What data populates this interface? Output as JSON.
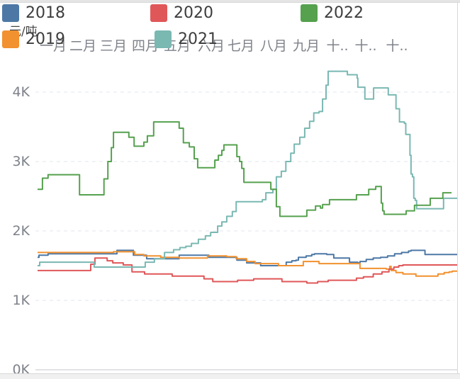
{
  "unit_label": "元/吨",
  "chart_data": {
    "type": "line",
    "title": "",
    "unit_label": "元/吨",
    "legend_position": "top",
    "grid": "dashed horizontal",
    "x_axis": {
      "position": "top",
      "labels": [
        "一月",
        "二月",
        "三月",
        "四月",
        "五月",
        "六月",
        "七月",
        "八月",
        "九月",
        "十..",
        "十..",
        "十.."
      ]
    },
    "y_axis": {
      "unit": "元/吨",
      "min": 0,
      "max": 4500,
      "ticks": [
        {
          "label": "0K",
          "value": 0
        },
        {
          "label": "1K",
          "value": 1000
        },
        {
          "label": "2K",
          "value": 2000
        },
        {
          "label": "3K",
          "value": 3000
        },
        {
          "label": "4K",
          "value": 4000
        }
      ]
    },
    "legend": [
      {
        "label": "2018",
        "color": "#4d78a6"
      },
      {
        "label": "2020",
        "color": "#e05759"
      },
      {
        "label": "2022",
        "color": "#55a14e"
      },
      {
        "label": "2019",
        "color": "#f2912f"
      },
      {
        "label": "2021",
        "color": "#7ab8b2"
      }
    ],
    "series": [
      {
        "name": "2018",
        "color": "#4d78a6",
        "points": [
          [
            0,
            1620
          ],
          [
            0.04,
            1650
          ],
          [
            0.26,
            1650
          ],
          [
            0.3,
            1670
          ],
          [
            2.21,
            1670
          ],
          [
            2.27,
            1720
          ],
          [
            2.68,
            1720
          ],
          [
            2.74,
            1650
          ],
          [
            3.08,
            1650
          ],
          [
            3.12,
            1600
          ],
          [
            3.99,
            1600
          ],
          [
            4.05,
            1650
          ],
          [
            4.84,
            1650
          ],
          [
            4.9,
            1620
          ],
          [
            5.62,
            1620
          ],
          [
            5.7,
            1580
          ],
          [
            5.94,
            1580
          ],
          [
            5.98,
            1540
          ],
          [
            6.32,
            1540
          ],
          [
            6.38,
            1500
          ],
          [
            7.03,
            1500
          ],
          [
            7.11,
            1550
          ],
          [
            7.27,
            1570
          ],
          [
            7.39,
            1580
          ],
          [
            7.46,
            1620
          ],
          [
            7.68,
            1640
          ],
          [
            7.84,
            1660
          ],
          [
            7.92,
            1670
          ],
          [
            8.21,
            1670
          ],
          [
            8.27,
            1660
          ],
          [
            8.43,
            1660
          ],
          [
            8.47,
            1610
          ],
          [
            8.86,
            1610
          ],
          [
            8.92,
            1550
          ],
          [
            9.16,
            1540
          ],
          [
            9.22,
            1560
          ],
          [
            9.4,
            1590
          ],
          [
            9.6,
            1610
          ],
          [
            9.81,
            1620
          ],
          [
            10.01,
            1640
          ],
          [
            10.21,
            1670
          ],
          [
            10.41,
            1690
          ],
          [
            10.61,
            1710
          ],
          [
            10.68,
            1720
          ],
          [
            11.02,
            1720
          ],
          [
            11.08,
            1660
          ],
          [
            12,
            1660
          ]
        ]
      },
      {
        "name": "2019",
        "color": "#f2912f",
        "points": [
          [
            0,
            1690
          ],
          [
            2.17,
            1700
          ],
          [
            2.74,
            1700
          ],
          [
            2.78,
            1660
          ],
          [
            2.98,
            1660
          ],
          [
            3.04,
            1640
          ],
          [
            3.48,
            1640
          ],
          [
            3.52,
            1620
          ],
          [
            3.99,
            1620
          ],
          [
            4.05,
            1610
          ],
          [
            4.8,
            1610
          ],
          [
            4.86,
            1640
          ],
          [
            5.37,
            1640
          ],
          [
            5.41,
            1630
          ],
          [
            5.62,
            1630
          ],
          [
            5.68,
            1600
          ],
          [
            5.92,
            1600
          ],
          [
            5.98,
            1560
          ],
          [
            6.18,
            1560
          ],
          [
            6.22,
            1530
          ],
          [
            6.83,
            1530
          ],
          [
            6.89,
            1500
          ],
          [
            7.54,
            1500
          ],
          [
            7.6,
            1560
          ],
          [
            7.99,
            1560
          ],
          [
            8.05,
            1530
          ],
          [
            9.16,
            1530
          ],
          [
            9.22,
            1460
          ],
          [
            9.91,
            1460
          ],
          [
            9.97,
            1450
          ],
          [
            10.07,
            1490
          ],
          [
            10.11,
            1430
          ],
          [
            10.21,
            1430
          ],
          [
            10.25,
            1400
          ],
          [
            10.41,
            1400
          ],
          [
            10.45,
            1380
          ],
          [
            10.78,
            1380
          ],
          [
            10.82,
            1350
          ],
          [
            11.39,
            1350
          ],
          [
            11.45,
            1380
          ],
          [
            11.63,
            1400
          ],
          [
            11.77,
            1410
          ],
          [
            11.86,
            1420
          ],
          [
            12,
            1420
          ]
        ]
      },
      {
        "name": "2020",
        "color": "#e05759",
        "points": [
          [
            0,
            1430
          ],
          [
            1.46,
            1430
          ],
          [
            1.52,
            1520
          ],
          [
            1.6,
            1520
          ],
          [
            1.64,
            1610
          ],
          [
            1.93,
            1610
          ],
          [
            1.99,
            1570
          ],
          [
            2.11,
            1570
          ],
          [
            2.15,
            1540
          ],
          [
            2.41,
            1540
          ],
          [
            2.45,
            1510
          ],
          [
            2.64,
            1510
          ],
          [
            2.7,
            1410
          ],
          [
            3.02,
            1410
          ],
          [
            3.06,
            1380
          ],
          [
            3.79,
            1380
          ],
          [
            3.85,
            1350
          ],
          [
            4.7,
            1350
          ],
          [
            4.76,
            1310
          ],
          [
            5.01,
            1270
          ],
          [
            5.65,
            1270
          ],
          [
            5.72,
            1290
          ],
          [
            6.12,
            1290
          ],
          [
            6.18,
            1310
          ],
          [
            6.93,
            1310
          ],
          [
            6.99,
            1270
          ],
          [
            7.64,
            1270
          ],
          [
            7.7,
            1250
          ],
          [
            7.93,
            1250
          ],
          [
            8.01,
            1270
          ],
          [
            8.25,
            1270
          ],
          [
            8.31,
            1290
          ],
          [
            9.06,
            1290
          ],
          [
            9.12,
            1320
          ],
          [
            9.28,
            1320
          ],
          [
            9.32,
            1340
          ],
          [
            9.54,
            1340
          ],
          [
            9.6,
            1380
          ],
          [
            9.79,
            1380
          ],
          [
            9.85,
            1410
          ],
          [
            9.99,
            1410
          ],
          [
            10.05,
            1450
          ],
          [
            10.13,
            1450
          ],
          [
            10.19,
            1480
          ],
          [
            10.29,
            1480
          ],
          [
            10.33,
            1500
          ],
          [
            10.41,
            1500
          ],
          [
            10.45,
            1510
          ],
          [
            12,
            1510
          ]
        ]
      },
      {
        "name": "2021",
        "color": "#7ab8b2",
        "points": [
          [
            0,
            1500
          ],
          [
            0.06,
            1550
          ],
          [
            1.56,
            1550
          ],
          [
            1.62,
            1480
          ],
          [
            2.92,
            1480
          ],
          [
            3.08,
            1550
          ],
          [
            3.34,
            1600
          ],
          [
            3.63,
            1690
          ],
          [
            3.89,
            1730
          ],
          [
            4.07,
            1760
          ],
          [
            4.24,
            1780
          ],
          [
            4.4,
            1820
          ],
          [
            4.6,
            1880
          ],
          [
            4.8,
            1930
          ],
          [
            4.95,
            1980
          ],
          [
            5.15,
            2070
          ],
          [
            5.27,
            2130
          ],
          [
            5.41,
            2210
          ],
          [
            5.57,
            2280
          ],
          [
            5.68,
            2420
          ],
          [
            6.43,
            2450
          ],
          [
            6.53,
            2550
          ],
          [
            6.73,
            2600
          ],
          [
            6.83,
            2780
          ],
          [
            6.97,
            2860
          ],
          [
            7.1,
            3000
          ],
          [
            7.24,
            3120
          ],
          [
            7.34,
            3250
          ],
          [
            7.5,
            3350
          ],
          [
            7.64,
            3480
          ],
          [
            7.78,
            3580
          ],
          [
            7.9,
            3700
          ],
          [
            8.05,
            3720
          ],
          [
            8.15,
            3900
          ],
          [
            8.25,
            4100
          ],
          [
            8.31,
            4300
          ],
          [
            8.8,
            4300
          ],
          [
            8.86,
            4250
          ],
          [
            9.1,
            4250
          ],
          [
            9.14,
            4200
          ],
          [
            9.16,
            4070
          ],
          [
            9.3,
            4070
          ],
          [
            9.36,
            3900
          ],
          [
            9.57,
            3900
          ],
          [
            9.61,
            4060
          ],
          [
            9.99,
            4060
          ],
          [
            10.03,
            3960
          ],
          [
            10.21,
            3960
          ],
          [
            10.25,
            3760
          ],
          [
            10.31,
            3760
          ],
          [
            10.35,
            3570
          ],
          [
            10.49,
            3550
          ],
          [
            10.53,
            3390
          ],
          [
            10.62,
            3390
          ],
          [
            10.65,
            3090
          ],
          [
            10.68,
            2820
          ],
          [
            10.72,
            2780
          ],
          [
            10.76,
            2470
          ],
          [
            10.8,
            2440
          ],
          [
            10.84,
            2320
          ],
          [
            11.55,
            2320
          ],
          [
            11.61,
            2470
          ],
          [
            12,
            2470
          ]
        ]
      },
      {
        "name": "2022",
        "color": "#55a14e",
        "points": [
          [
            0,
            2600
          ],
          [
            0.1,
            2600
          ],
          [
            0.14,
            2760
          ],
          [
            0.26,
            2760
          ],
          [
            0.3,
            2810
          ],
          [
            1.16,
            2810
          ],
          [
            1.2,
            2520
          ],
          [
            1.82,
            2520
          ],
          [
            1.9,
            2750
          ],
          [
            2.01,
            3000
          ],
          [
            2.11,
            3200
          ],
          [
            2.17,
            3420
          ],
          [
            2.57,
            3420
          ],
          [
            2.61,
            3350
          ],
          [
            2.72,
            3350
          ],
          [
            2.76,
            3220
          ],
          [
            3.0,
            3220
          ],
          [
            3.04,
            3280
          ],
          [
            3.14,
            3370
          ],
          [
            3.28,
            3370
          ],
          [
            3.32,
            3570
          ],
          [
            3.99,
            3570
          ],
          [
            4.05,
            3480
          ],
          [
            4.13,
            3480
          ],
          [
            4.17,
            3270
          ],
          [
            4.3,
            3270
          ],
          [
            4.34,
            3210
          ],
          [
            4.44,
            3210
          ],
          [
            4.48,
            3040
          ],
          [
            4.54,
            3040
          ],
          [
            4.58,
            2910
          ],
          [
            5.01,
            2910
          ],
          [
            5.07,
            3020
          ],
          [
            5.17,
            3090
          ],
          [
            5.27,
            3160
          ],
          [
            5.33,
            3240
          ],
          [
            5.66,
            3240
          ],
          [
            5.7,
            3070
          ],
          [
            5.78,
            3000
          ],
          [
            5.84,
            2900
          ],
          [
            5.9,
            2700
          ],
          [
            6.63,
            2700
          ],
          [
            6.67,
            2600
          ],
          [
            6.79,
            2600
          ],
          [
            6.83,
            2350
          ],
          [
            6.93,
            2210
          ],
          [
            7.64,
            2210
          ],
          [
            7.7,
            2300
          ],
          [
            7.95,
            2360
          ],
          [
            8.09,
            2330
          ],
          [
            8.15,
            2380
          ],
          [
            8.31,
            2380
          ],
          [
            8.35,
            2450
          ],
          [
            9.06,
            2450
          ],
          [
            9.12,
            2520
          ],
          [
            9.43,
            2520
          ],
          [
            9.47,
            2600
          ],
          [
            9.63,
            2600
          ],
          [
            9.67,
            2640
          ],
          [
            9.79,
            2640
          ],
          [
            9.83,
            2400
          ],
          [
            9.87,
            2290
          ],
          [
            9.91,
            2240
          ],
          [
            10.48,
            2240
          ],
          [
            10.54,
            2290
          ],
          [
            10.74,
            2290
          ],
          [
            10.78,
            2370
          ],
          [
            11.19,
            2370
          ],
          [
            11.23,
            2470
          ],
          [
            11.55,
            2470
          ],
          [
            11.59,
            2550
          ],
          [
            11.84,
            2550
          ]
        ]
      }
    ]
  }
}
